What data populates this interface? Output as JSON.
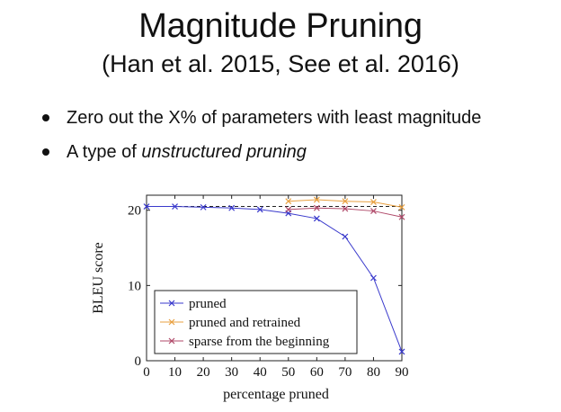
{
  "slide": {
    "title": "Magnitude Pruning",
    "subtitle": "(Han et al. 2015, See et al. 2016)",
    "bullets": [
      {
        "text_before": "Zero out the X% of parameters with least magnitude",
        "text_emphasis": ""
      },
      {
        "text_before": "A type of ",
        "text_emphasis": "unstructured pruning"
      }
    ]
  },
  "chart_data": {
    "type": "line",
    "title": "",
    "xlabel": "percentage pruned",
    "ylabel": "BLEU score",
    "xlim": [
      0,
      90
    ],
    "ylim": [
      0,
      22
    ],
    "xticks": [
      0,
      10,
      20,
      30,
      40,
      50,
      60,
      70,
      80,
      90
    ],
    "yticks": [
      0,
      10,
      20
    ],
    "grid": false,
    "legend_position": "bottom-left",
    "reference_line": {
      "y": 20.5,
      "style": "dashed",
      "color": "#222222"
    },
    "series": [
      {
        "name": "pruned",
        "color": "#3a3acc",
        "marker": "x",
        "x": [
          0,
          10,
          20,
          30,
          40,
          50,
          60,
          70,
          80,
          90
        ],
        "y": [
          20.5,
          20.5,
          20.4,
          20.3,
          20.1,
          19.6,
          18.9,
          16.5,
          11.0,
          1.2
        ]
      },
      {
        "name": "pruned and retrained",
        "color": "#e8a040",
        "marker": "x",
        "x": [
          50,
          60,
          70,
          80,
          90
        ],
        "y": [
          21.2,
          21.4,
          21.2,
          21.1,
          20.4
        ]
      },
      {
        "name": "sparse from the beginning",
        "color": "#b04a6a",
        "marker": "x",
        "x": [
          50,
          60,
          70,
          80,
          90
        ],
        "y": [
          20.1,
          20.3,
          20.2,
          19.9,
          19.1
        ]
      }
    ]
  }
}
